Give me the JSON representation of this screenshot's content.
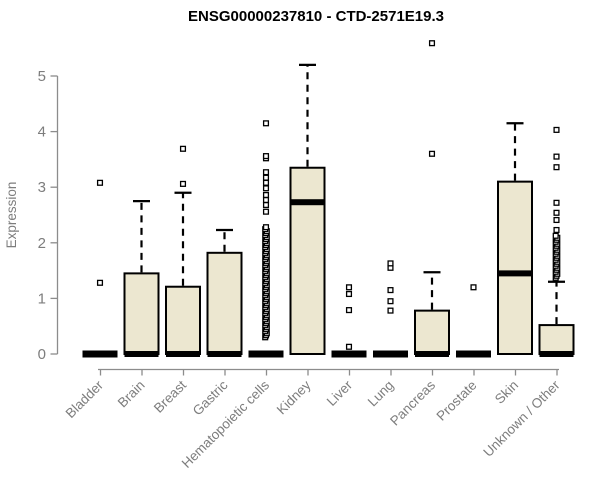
{
  "chart_data": {
    "type": "boxplot",
    "title": "ENSG00000237810 - CTD-2571E19.3",
    "ylabel": "Expression",
    "yticks": [
      0,
      1,
      2,
      3,
      4,
      5
    ],
    "ylim": [
      0,
      5.65
    ],
    "grid": false,
    "legend": "none",
    "categories": [
      "Bladder",
      "Brain",
      "Breast",
      "Gastric",
      "Hematopoietic cells",
      "Kidney",
      "Liver",
      "Lung",
      "Pancreas",
      "Prostate",
      "Skin",
      "Unknown / Other"
    ],
    "boxes": [
      {
        "category": "Bladder",
        "q1": 0,
        "median": 0,
        "q3": 0,
        "whisker_low": 0,
        "whisker_high": 0,
        "outliers": [
          1.28,
          3.08
        ]
      },
      {
        "category": "Brain",
        "q1": 0,
        "median": 0,
        "q3": 1.45,
        "whisker_low": 0,
        "whisker_high": 2.75,
        "outliers": []
      },
      {
        "category": "Breast",
        "q1": 0,
        "median": 0,
        "q3": 1.21,
        "whisker_low": 0,
        "whisker_high": 2.9,
        "outliers": [
          3.06,
          3.69
        ]
      },
      {
        "category": "Gastric",
        "q1": 0,
        "median": 0,
        "q3": 1.82,
        "whisker_low": 0,
        "whisker_high": 2.23,
        "outliers": []
      },
      {
        "category": "Hematopoietic cells",
        "q1": 0,
        "median": 0,
        "q3": 0,
        "whisker_low": 0,
        "whisker_high": 0,
        "outliers": [
          2.56,
          2.68,
          2.77,
          2.86,
          2.98,
          3.08,
          3.17,
          3.27,
          3.52,
          3.56,
          4.15
        ],
        "outlier_band": [
          0.3,
          2.3
        ]
      },
      {
        "category": "Kidney",
        "q1": 0,
        "median": 2.73,
        "q3": 3.35,
        "whisker_low": 0,
        "whisker_high": 5.2,
        "outliers": []
      },
      {
        "category": "Liver",
        "q1": 0,
        "median": 0,
        "q3": 0,
        "whisker_low": 0,
        "whisker_high": 0,
        "outliers": [
          0.13,
          0.79,
          1.08,
          1.2
        ]
      },
      {
        "category": "Lung",
        "q1": 0,
        "median": 0,
        "q3": 0,
        "whisker_low": 0,
        "whisker_high": 0,
        "outliers": [
          0.78,
          0.95,
          1.15,
          1.55,
          1.63
        ]
      },
      {
        "category": "Pancreas",
        "q1": 0,
        "median": 0,
        "q3": 0.78,
        "whisker_low": 0,
        "whisker_high": 1.47,
        "outliers": [
          3.6,
          5.59
        ]
      },
      {
        "category": "Prostate",
        "q1": 0,
        "median": 0,
        "q3": 0,
        "whisker_low": 0,
        "whisker_high": 0,
        "outliers": [
          1.2
        ]
      },
      {
        "category": "Skin",
        "q1": 0,
        "median": 1.45,
        "q3": 3.1,
        "whisker_low": 0,
        "whisker_high": 4.15,
        "outliers": []
      },
      {
        "category": "Unknown / Other",
        "q1": 0,
        "median": 0,
        "q3": 0.52,
        "whisker_low": 0,
        "whisker_high": 1.3,
        "outliers": [
          2.23,
          2.41,
          2.54,
          2.72,
          3.36,
          3.55,
          4.03
        ],
        "outlier_band": [
          1.37,
          2.14
        ]
      }
    ],
    "colors": {
      "box_fill": "#ece7d0",
      "box_stroke": "#000000",
      "axis": "#8c8c8c",
      "tick_label": "#7d7d7d",
      "title": "#000000"
    }
  }
}
